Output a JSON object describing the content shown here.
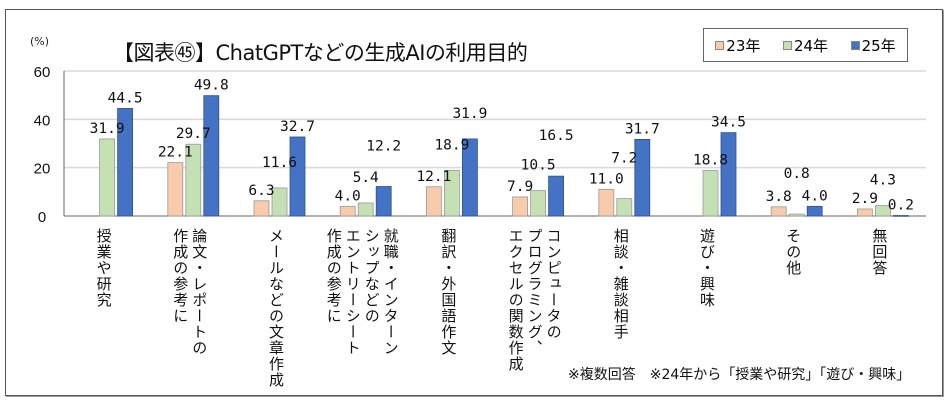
{
  "chart_data": {
    "type": "bar",
    "title": "【図表㊺】ChatGPTなどの生成AIの利用目的",
    "ylabel": "(%)",
    "ylim": [
      0,
      60
    ],
    "yticks": [
      0,
      20,
      40,
      60
    ],
    "grid": true,
    "legend_position": "top-right",
    "categories": [
      "授業や研究",
      "論文・レポートの\n作成の参考に",
      "メールなどの文章作成",
      "就職・インターン\nシップなどの\nエントリーシート\n作成の参考に",
      "翻訳・外国語作文",
      "コンピュータの\nプログラミング、\nエクセルの関数作成",
      "相談・雑談相手",
      "遊び・興味",
      "その他",
      "無回答"
    ],
    "series": [
      {
        "name": "23年",
        "color": "#F8CBAD",
        "values": [
          null,
          22.1,
          6.3,
          4.0,
          12.1,
          7.9,
          11.0,
          null,
          3.8,
          2.9
        ]
      },
      {
        "name": "24年",
        "color": "#C5E0B4",
        "values": [
          31.9,
          29.7,
          11.6,
          5.4,
          18.9,
          10.5,
          7.2,
          18.8,
          0.8,
          4.3
        ]
      },
      {
        "name": "25年",
        "color": "#4472C4",
        "values": [
          44.5,
          49.8,
          32.7,
          12.2,
          31.9,
          16.5,
          31.7,
          34.5,
          4.0,
          0.2
        ]
      }
    ],
    "note": "※複数回答　※24年から「授業や研究」「遊び・興味」"
  }
}
